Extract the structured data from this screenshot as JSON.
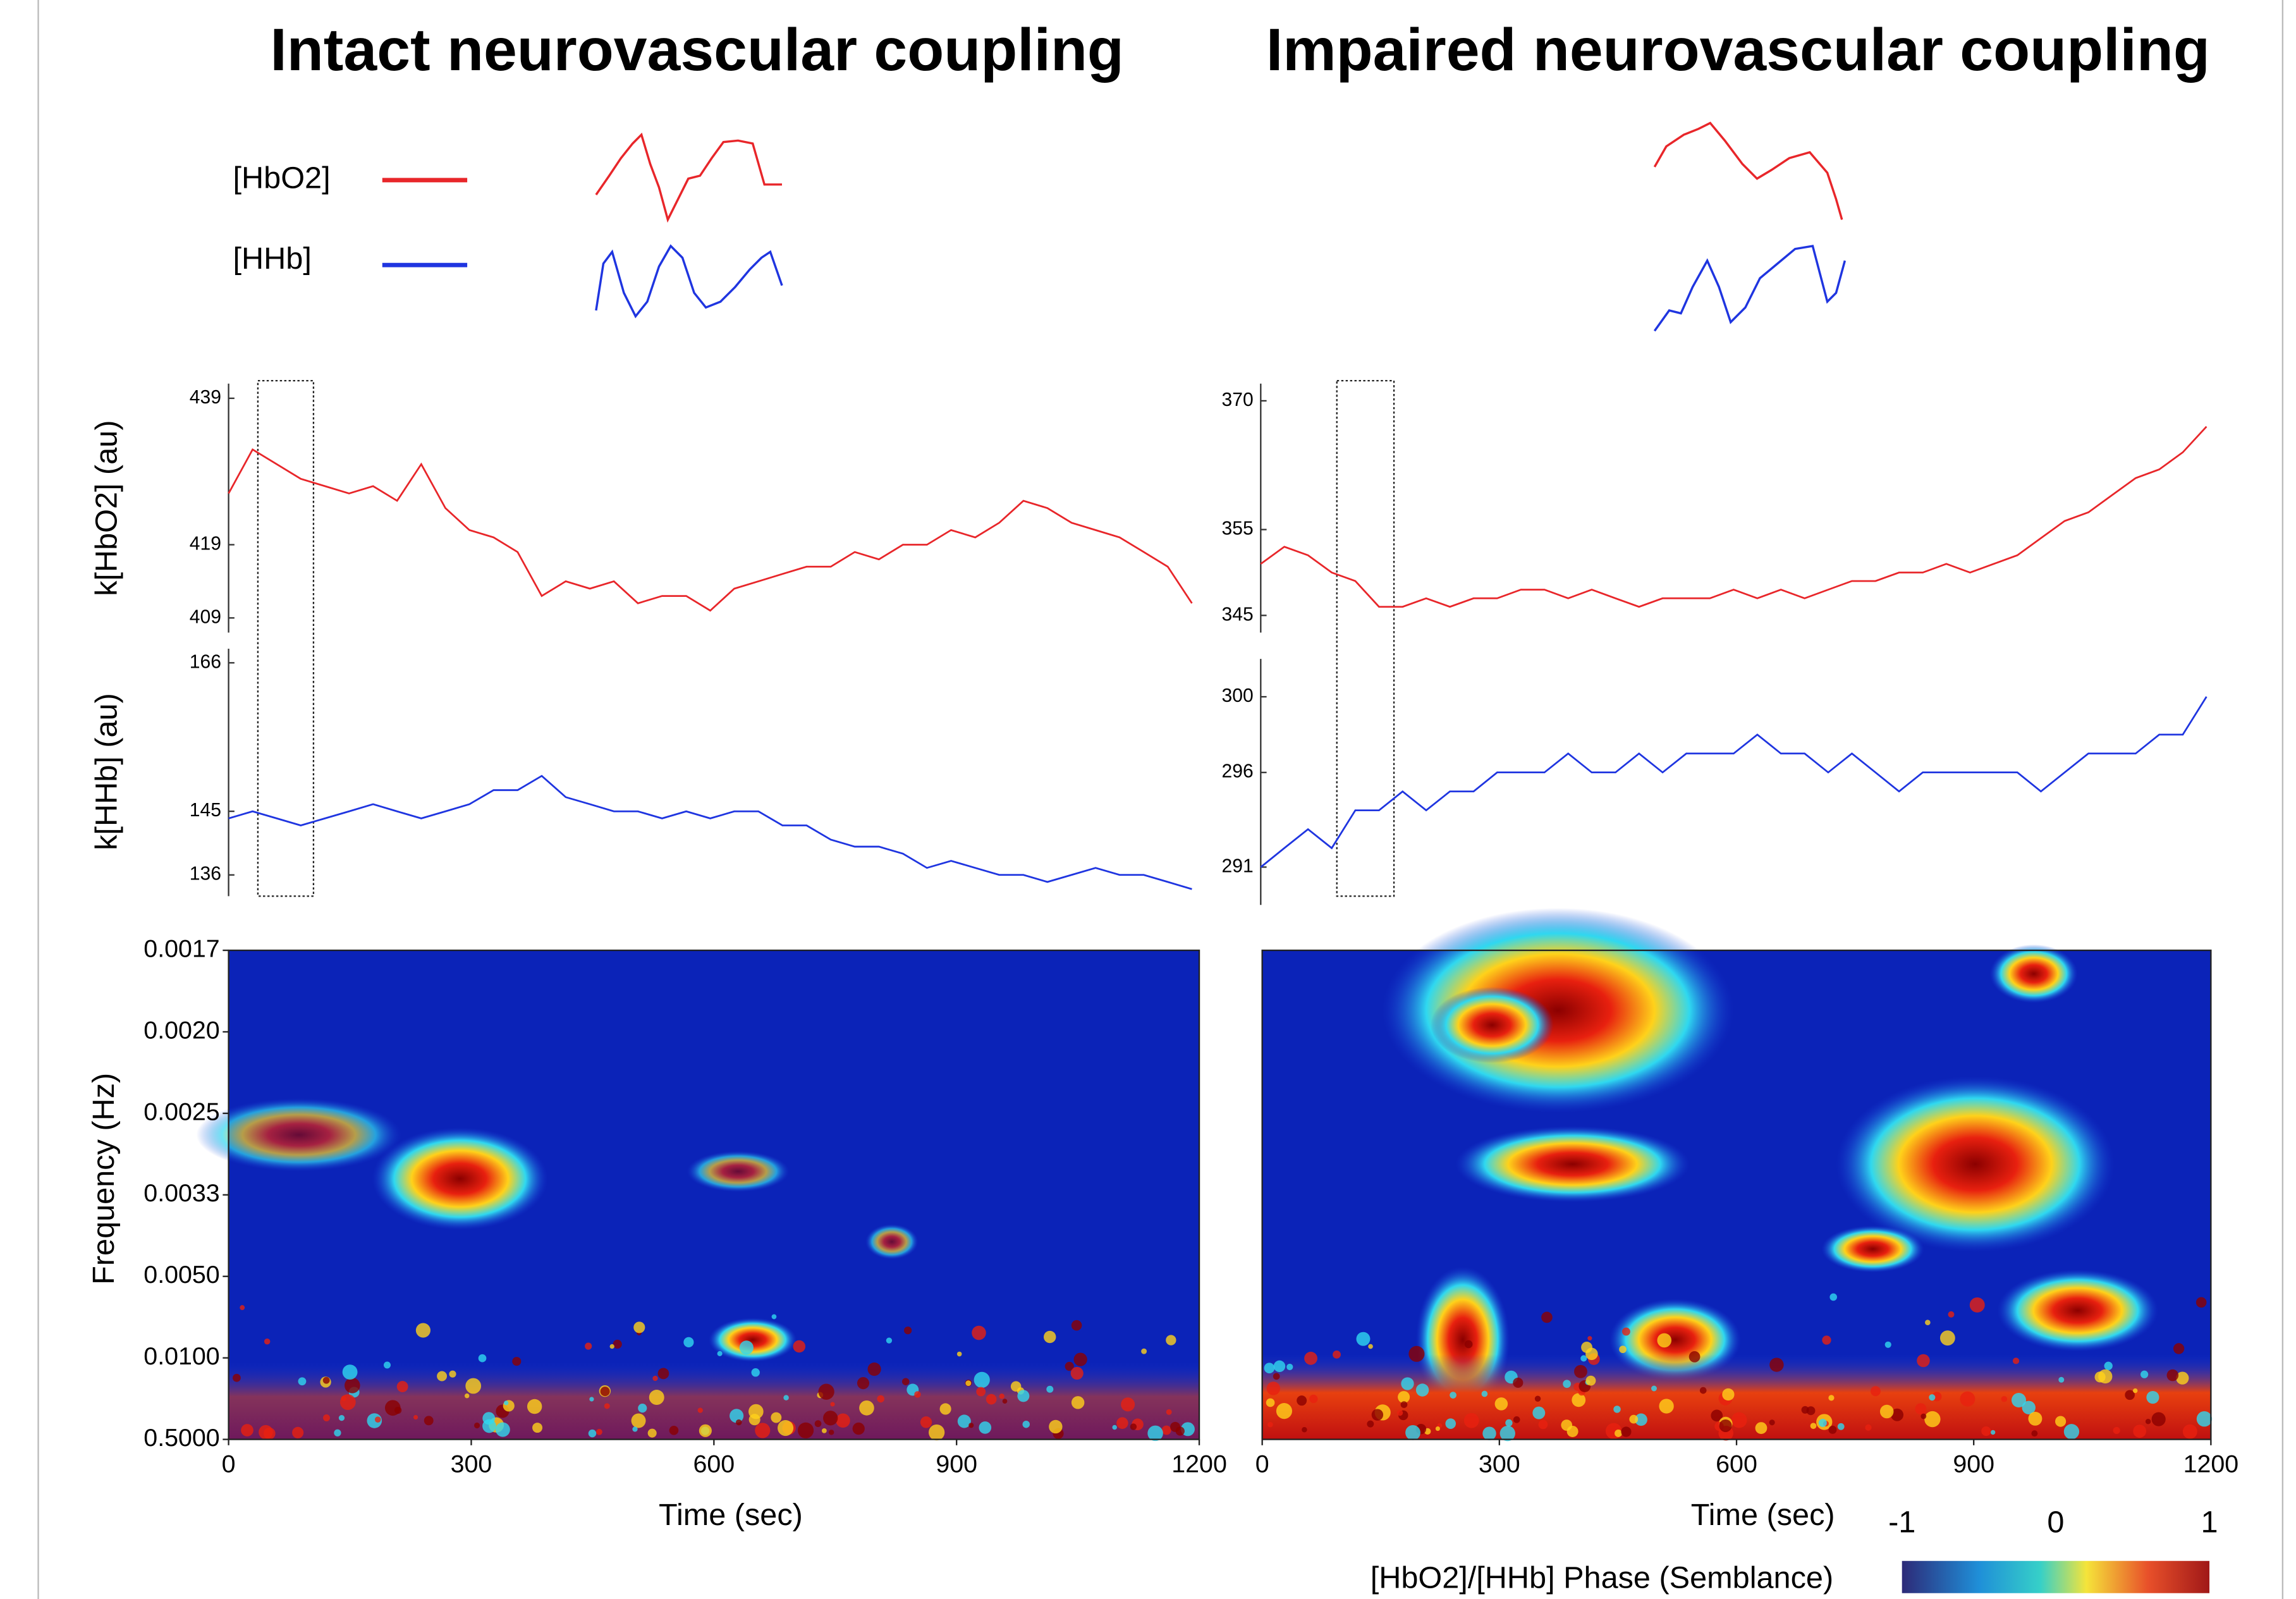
{
  "header": {
    "titles": [
      "Intact neurovascular coupling",
      "Impaired neurovascular coupling"
    ]
  },
  "legend": [
    {
      "name": "[HbO2]",
      "color": "#e8262a"
    },
    {
      "name": "[HHb]",
      "color": "#1f35e0"
    }
  ],
  "chart_data": [
    {
      "type": "line",
      "ylabel": "k[HbO2] (au)",
      "color": "#e8262a",
      "xlim": [
        0,
        1200
      ],
      "ylim": [
        407,
        441
      ],
      "yticks": [
        409,
        419,
        439
      ],
      "x": [
        0,
        30,
        60,
        90,
        120,
        150,
        180,
        210,
        240,
        270,
        300,
        330,
        360,
        390,
        420,
        450,
        480,
        510,
        540,
        570,
        600,
        630,
        660,
        690,
        720,
        750,
        780,
        810,
        840,
        870,
        900,
        930,
        960,
        990,
        1020,
        1050,
        1080,
        1110,
        1140,
        1170,
        1200
      ],
      "values": [
        426,
        432,
        430,
        428,
        427,
        426,
        427,
        425,
        430,
        424,
        421,
        420,
        418,
        412,
        414,
        413,
        414,
        411,
        412,
        412,
        410,
        413,
        414,
        415,
        416,
        416,
        418,
        417,
        419,
        419,
        421,
        420,
        422,
        425,
        424,
        422,
        421,
        420,
        418,
        416,
        411
      ]
    },
    {
      "type": "line",
      "ylabel": "k[HHb] (au)",
      "color": "#1f35e0",
      "xlim": [
        0,
        1200
      ],
      "ylim": [
        133,
        168
      ],
      "yticks": [
        136,
        145,
        166
      ],
      "x": [
        0,
        30,
        60,
        90,
        120,
        150,
        180,
        210,
        240,
        270,
        300,
        330,
        360,
        390,
        420,
        450,
        480,
        510,
        540,
        570,
        600,
        630,
        660,
        690,
        720,
        750,
        780,
        810,
        840,
        870,
        900,
        930,
        960,
        990,
        1020,
        1050,
        1080,
        1110,
        1140,
        1170,
        1200
      ],
      "values": [
        144,
        145,
        144,
        143,
        144,
        145,
        146,
        145,
        144,
        145,
        146,
        148,
        148,
        150,
        147,
        146,
        145,
        145,
        144,
        145,
        144,
        145,
        145,
        143,
        143,
        141,
        140,
        140,
        139,
        137,
        138,
        137,
        136,
        136,
        135,
        136,
        137,
        136,
        136,
        135,
        134
      ]
    },
    {
      "type": "line",
      "color": "#e8262a",
      "xlim": [
        0,
        1200
      ],
      "ylim": [
        343,
        372
      ],
      "yticks": [
        345,
        355,
        370
      ],
      "x": [
        0,
        30,
        60,
        90,
        120,
        150,
        180,
        210,
        240,
        270,
        300,
        330,
        360,
        390,
        420,
        450,
        480,
        510,
        540,
        570,
        600,
        630,
        660,
        690,
        720,
        750,
        780,
        810,
        840,
        870,
        900,
        930,
        960,
        990,
        1020,
        1050,
        1080,
        1110,
        1140,
        1170,
        1200
      ],
      "values": [
        351,
        353,
        352,
        350,
        349,
        346,
        346,
        347,
        346,
        347,
        347,
        348,
        348,
        347,
        348,
        347,
        346,
        347,
        347,
        347,
        348,
        347,
        348,
        347,
        348,
        349,
        349,
        350,
        350,
        351,
        350,
        351,
        352,
        354,
        356,
        357,
        359,
        361,
        362,
        364,
        367
      ]
    },
    {
      "type": "line",
      "color": "#1f35e0",
      "xlim": [
        0,
        1200
      ],
      "ylim": [
        289,
        302
      ],
      "yticks": [
        291,
        296,
        300
      ],
      "x": [
        0,
        30,
        60,
        90,
        120,
        150,
        180,
        210,
        240,
        270,
        300,
        330,
        360,
        390,
        420,
        450,
        480,
        510,
        540,
        570,
        600,
        630,
        660,
        690,
        720,
        750,
        780,
        810,
        840,
        870,
        900,
        930,
        960,
        990,
        1020,
        1050,
        1080,
        1110,
        1140,
        1170,
        1200
      ],
      "values": [
        291,
        292,
        293,
        292,
        294,
        294,
        295,
        294,
        295,
        295,
        296,
        296,
        296,
        297,
        296,
        296,
        297,
        296,
        297,
        297,
        297,
        298,
        297,
        297,
        296,
        297,
        296,
        295,
        296,
        296,
        296,
        296,
        296,
        295,
        296,
        297,
        297,
        297,
        298,
        298,
        300
      ]
    },
    {
      "type": "heatmap",
      "xlabel": "Time (sec)",
      "ylabel": "Frequency (Hz)",
      "xlim": [
        0,
        1200
      ],
      "xticks": [
        0,
        300,
        600,
        900,
        1200
      ],
      "yticks": [
        0.0017,
        {
          "value": 0.002,
          "label": "0.0020"
        },
        0.0025,
        0.0033,
        {
          "value": 0.005,
          "label": "0.0050"
        },
        {
          "value": 0.01,
          "label": "0.0100"
        },
        {
          "value": 0.5,
          "label": "0.5000"
        }
      ]
    },
    {
      "type": "heatmap",
      "xlabel": "Time (sec)",
      "xlim": [
        0,
        1200
      ],
      "xticks": [
        0,
        300,
        600,
        900,
        1200
      ],
      "colorbar": {
        "label": "[HbO2]/[HHb] Phase (Semblance)",
        "lim": [
          -1,
          1
        ],
        "ticks": [
          -1,
          0,
          1
        ]
      }
    }
  ]
}
